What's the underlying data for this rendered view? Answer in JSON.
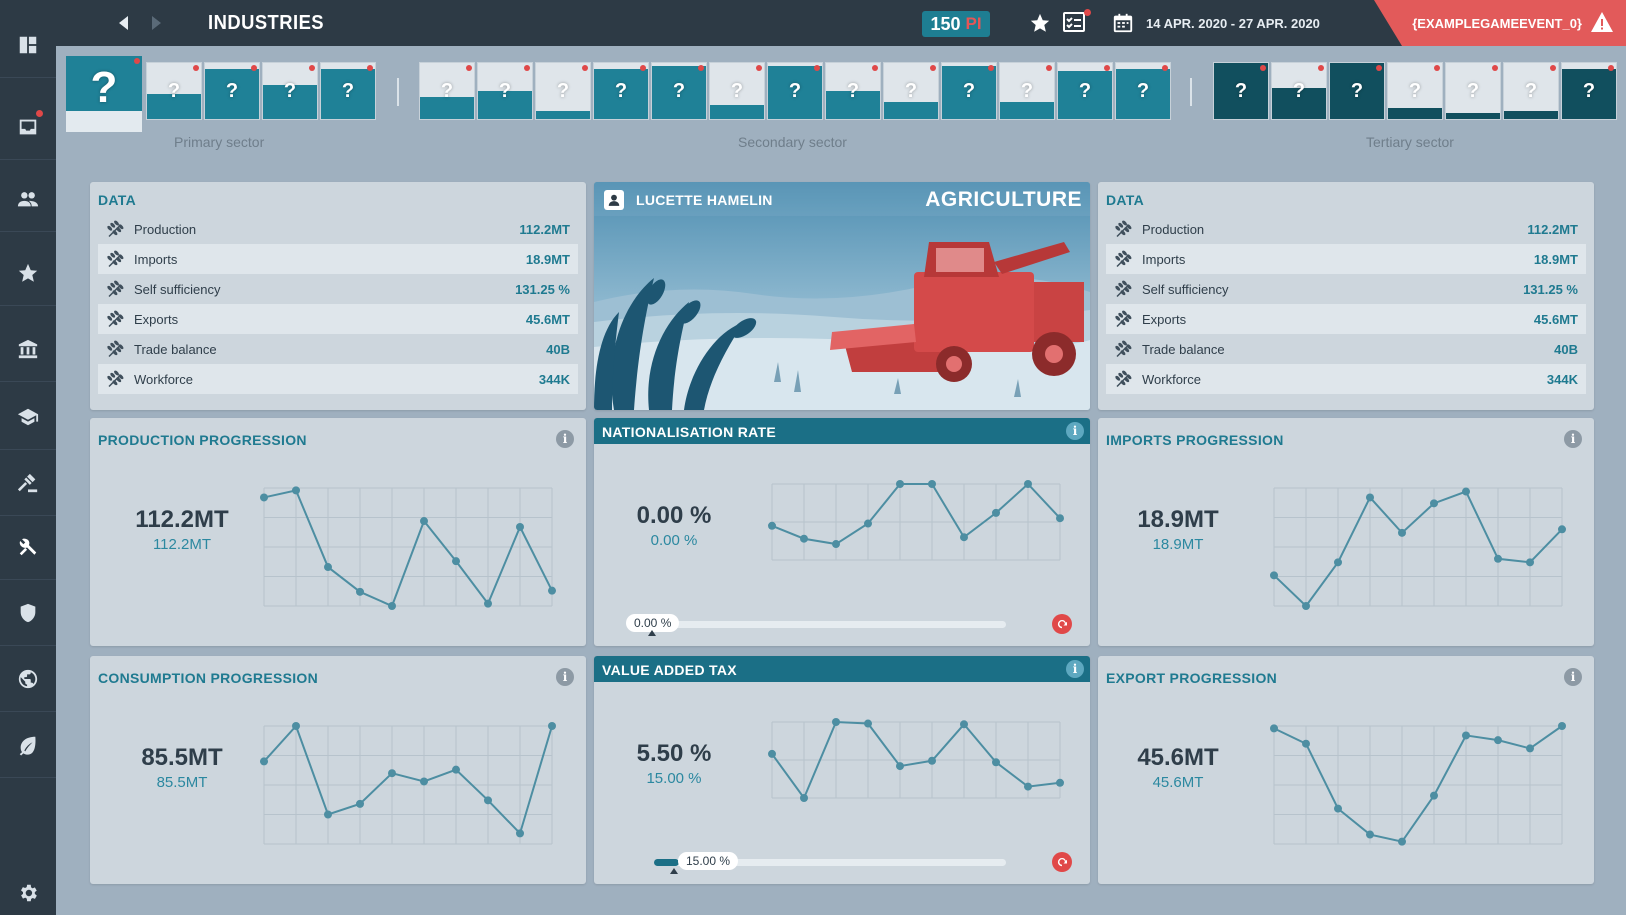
{
  "topbar": {
    "title": "INDUSTRIES",
    "pi_value": "150",
    "pi_unit": "PI",
    "date_range": "14 APR. 2020 - 27 APR. 2020",
    "event_label": "{EXAMPLEGAMEEVENT_0}"
  },
  "sidebar": {
    "items": [
      {
        "icon": "dashboard-icon"
      },
      {
        "icon": "inbox-icon",
        "notification": true
      },
      {
        "icon": "people-icon"
      },
      {
        "icon": "star-icon"
      },
      {
        "icon": "bank-icon"
      },
      {
        "icon": "education-icon"
      },
      {
        "icon": "justice-icon"
      },
      {
        "icon": "tools-icon",
        "active": true
      },
      {
        "icon": "shield-icon"
      },
      {
        "icon": "globe-icon"
      },
      {
        "icon": "leaf-icon"
      },
      {
        "icon": "settings-icon"
      }
    ]
  },
  "sectors": {
    "primary_label": "Primary sector",
    "secondary_label": "Secondary sector",
    "tertiary_label": "Tertiary sector",
    "tile_symbol": "?",
    "primary": [
      {
        "fill": 0.0,
        "selected": true,
        "dot": true
      },
      {
        "fill": 0.45,
        "dot": true
      },
      {
        "fill": 0.9,
        "dot": true
      },
      {
        "fill": 0.6,
        "dot": true
      },
      {
        "fill": 0.9,
        "dot": true
      }
    ],
    "secondary": [
      {
        "fill": 0.4,
        "dot": true
      },
      {
        "fill": 0.5,
        "dot": true
      },
      {
        "fill": 0.15,
        "dot": true
      },
      {
        "fill": 0.9,
        "dot": true
      },
      {
        "fill": 0.95,
        "dot": true
      },
      {
        "fill": 0.25,
        "dot": true
      },
      {
        "fill": 0.95,
        "dot": true
      },
      {
        "fill": 0.5,
        "dot": true
      },
      {
        "fill": 0.3,
        "dot": true
      },
      {
        "fill": 0.95,
        "dot": true
      },
      {
        "fill": 0.3,
        "dot": true
      },
      {
        "fill": 0.85,
        "dot": true
      },
      {
        "fill": 0.9,
        "dot": true
      }
    ],
    "tertiary": [
      {
        "fill": 1.0,
        "dark": true,
        "dot": true
      },
      {
        "fill": 0.55,
        "dark": true,
        "dot": true
      },
      {
        "fill": 1.0,
        "dark": true,
        "dot": true
      },
      {
        "fill": 0.2,
        "dark": true,
        "dot": true
      },
      {
        "fill": 0.1,
        "dark": true,
        "dot": true
      },
      {
        "fill": 0.15,
        "dark": true,
        "dot": true
      },
      {
        "fill": 0.9,
        "dark": true,
        "dot": true
      }
    ]
  },
  "data_left": {
    "title": "DATA",
    "rows": [
      {
        "label": "Production",
        "value": "112.2MT"
      },
      {
        "label": "Imports",
        "value": "18.9MT"
      },
      {
        "label": "Self sufficiency",
        "value": "131.25 %"
      },
      {
        "label": "Exports",
        "value": "45.6MT"
      },
      {
        "label": "Trade balance",
        "value": "40B"
      },
      {
        "label": "Workforce",
        "value": "344K"
      }
    ]
  },
  "data_right": {
    "title": "DATA",
    "rows": [
      {
        "label": "Production",
        "value": "112.2MT"
      },
      {
        "label": "Imports",
        "value": "18.9MT"
      },
      {
        "label": "Self sufficiency",
        "value": "131.25 %"
      },
      {
        "label": "Exports",
        "value": "45.6MT"
      },
      {
        "label": "Trade balance",
        "value": "40B"
      },
      {
        "label": "Workforce",
        "value": "344K"
      }
    ]
  },
  "illustration": {
    "advisor_name": "LUCETTE HAMELIN",
    "industry_title": "AGRICULTURE"
  },
  "production": {
    "title": "PRODUCTION PROGRESSION",
    "value": "112.2MT",
    "sub_value": "112.2MT",
    "info": "i"
  },
  "nationalisation": {
    "title": "NATIONALISATION RATE",
    "value": "0.00 %",
    "sub_value": "0.00 %",
    "slider_label": "0.00 %",
    "slider_fill": 0.0,
    "info": "i"
  },
  "imports": {
    "title": "IMPORTS PROGRESSION",
    "value": "18.9MT",
    "sub_value": "18.9MT",
    "info": "i"
  },
  "consumption": {
    "title": "CONSUMPTION PROGRESSION",
    "value": "85.5MT",
    "sub_value": "85.5MT",
    "info": "i"
  },
  "vat": {
    "title": "VALUE ADDED TAX",
    "value": "5.50 %",
    "sub_value": "15.00 %",
    "slider_label": "15.00 %",
    "slider_fill": 0.07,
    "info": "i"
  },
  "exports": {
    "title": "EXPORT PROGRESSION",
    "value": "45.6MT",
    "sub_value": "45.6MT",
    "info": "i"
  },
  "chart_data": [
    {
      "type": "line",
      "id": "production",
      "x": [
        1,
        2,
        3,
        4,
        5,
        6,
        7,
        8,
        9,
        10
      ],
      "values": [
        0.92,
        0.98,
        0.33,
        0.12,
        0.0,
        0.72,
        0.38,
        0.02,
        0.67,
        0.13
      ],
      "ylim": [
        0,
        1
      ]
    },
    {
      "type": "line",
      "id": "nationalisation",
      "x": [
        1,
        2,
        3,
        4,
        5,
        6,
        7,
        8,
        9,
        10
      ],
      "values": [
        0.45,
        0.28,
        0.21,
        0.48,
        1.0,
        1.0,
        0.3,
        0.62,
        1.0,
        0.55
      ],
      "ylim": [
        0,
        1
      ]
    },
    {
      "type": "line",
      "id": "imports",
      "x": [
        1,
        2,
        3,
        4,
        5,
        6,
        7,
        8,
        9,
        10
      ],
      "values": [
        0.26,
        0.0,
        0.37,
        0.92,
        0.62,
        0.87,
        0.97,
        0.4,
        0.37,
        0.65
      ],
      "ylim": [
        0,
        1
      ]
    },
    {
      "type": "line",
      "id": "consumption",
      "x": [
        1,
        2,
        3,
        4,
        5,
        6,
        7,
        8,
        9,
        10
      ],
      "values": [
        0.7,
        1.0,
        0.25,
        0.34,
        0.6,
        0.53,
        0.63,
        0.37,
        0.09,
        1.0
      ],
      "ylim": [
        0,
        1
      ]
    },
    {
      "type": "line",
      "id": "vat",
      "x": [
        1,
        2,
        3,
        4,
        5,
        6,
        7,
        8,
        9,
        10
      ],
      "values": [
        0.58,
        0.0,
        1.0,
        0.98,
        0.42,
        0.49,
        0.97,
        0.47,
        0.15,
        0.2
      ],
      "ylim": [
        0,
        1
      ]
    },
    {
      "type": "line",
      "id": "exports",
      "x": [
        1,
        2,
        3,
        4,
        5,
        6,
        7,
        8,
        9,
        10
      ],
      "values": [
        0.98,
        0.85,
        0.3,
        0.08,
        0.02,
        0.41,
        0.92,
        0.88,
        0.81,
        1.0
      ],
      "ylim": [
        0,
        1
      ]
    }
  ],
  "colors": {
    "accent": "#1f7a90",
    "chart_line": "#4d8ea2",
    "alert": "#e04848",
    "sidebar_bg": "#2d3a45"
  }
}
